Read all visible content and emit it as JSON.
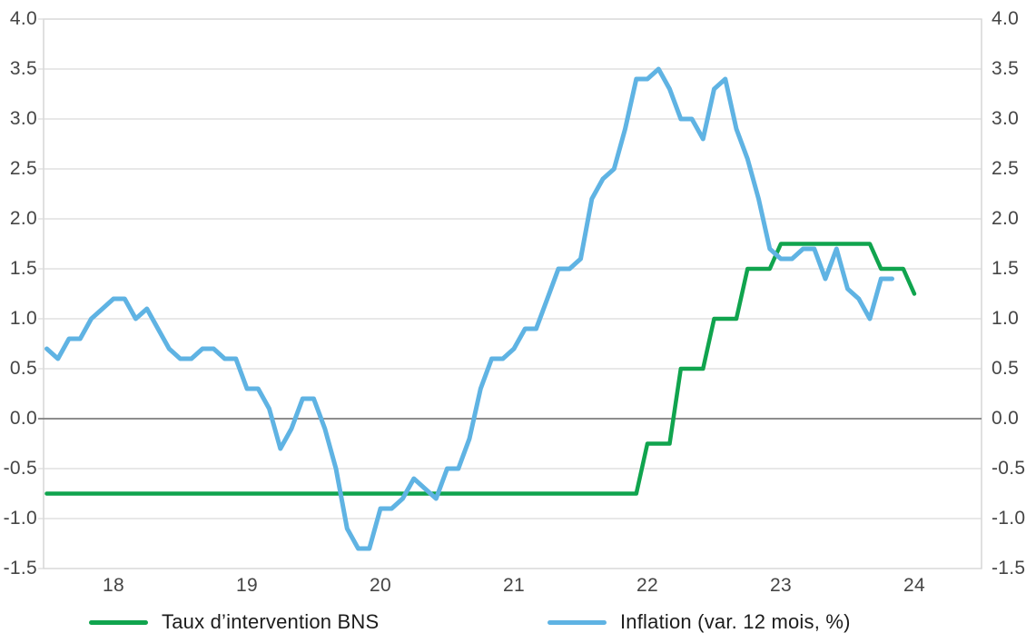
{
  "chart_data": {
    "type": "line",
    "title": "",
    "x_unit": "month",
    "x_start": "2018-01",
    "x_tick_labels": [
      "18",
      "19",
      "20",
      "21",
      "22",
      "23",
      "24"
    ],
    "y_tick_labels": [
      "4.0",
      "3.5",
      "3.0",
      "2.5",
      "2.0",
      "1.5",
      "1.0",
      "0.5",
      "0.0",
      "-0.5",
      "-1.0",
      "-1.5"
    ],
    "ylim": [
      -1.5,
      4.0
    ],
    "y_step": 0.5,
    "grid": "horizontal",
    "zero_line": true,
    "legend_position": "bottom",
    "colors": {
      "grid": "#d9d9d9",
      "zero_line": "#7d7d7d",
      "plot_border": "#d0d0d0",
      "axis_text": "#454545",
      "legend_text": "#1c1c1c"
    },
    "series": [
      {
        "name": "Taux d’intervention BNS",
        "color": "#10a44e",
        "values": [
          -0.75,
          -0.75,
          -0.75,
          -0.75,
          -0.75,
          -0.75,
          -0.75,
          -0.75,
          -0.75,
          -0.75,
          -0.75,
          -0.75,
          -0.75,
          -0.75,
          -0.75,
          -0.75,
          -0.75,
          -0.75,
          -0.75,
          -0.75,
          -0.75,
          -0.75,
          -0.75,
          -0.75,
          -0.75,
          -0.75,
          -0.75,
          -0.75,
          -0.75,
          -0.75,
          -0.75,
          -0.75,
          -0.75,
          -0.75,
          -0.75,
          -0.75,
          -0.75,
          -0.75,
          -0.75,
          -0.75,
          -0.75,
          -0.75,
          -0.75,
          -0.75,
          -0.75,
          -0.75,
          -0.75,
          -0.75,
          -0.75,
          -0.75,
          -0.75,
          -0.75,
          -0.75,
          -0.75,
          -0.25,
          -0.25,
          -0.25,
          0.5,
          0.5,
          0.5,
          1.0,
          1.0,
          1.0,
          1.5,
          1.5,
          1.5,
          1.75,
          1.75,
          1.75,
          1.75,
          1.75,
          1.75,
          1.75,
          1.75,
          1.75,
          1.5,
          1.5,
          1.5,
          1.25
        ]
      },
      {
        "name": "Inflation (var. 12 mois, %)",
        "color": "#5fb3e3",
        "values": [
          0.7,
          0.6,
          0.8,
          0.8,
          1.0,
          1.1,
          1.2,
          1.2,
          1.0,
          1.1,
          0.9,
          0.7,
          0.6,
          0.6,
          0.7,
          0.7,
          0.6,
          0.6,
          0.3,
          0.3,
          0.1,
          -0.3,
          -0.1,
          0.2,
          0.2,
          -0.1,
          -0.5,
          -1.1,
          -1.3,
          -1.3,
          -0.9,
          -0.9,
          -0.8,
          -0.6,
          -0.7,
          -0.8,
          -0.5,
          -0.5,
          -0.2,
          0.3,
          0.6,
          0.6,
          0.7,
          0.9,
          0.9,
          1.2,
          1.5,
          1.5,
          1.6,
          2.2,
          2.4,
          2.5,
          2.9,
          3.4,
          3.4,
          3.5,
          3.3,
          3.0,
          3.0,
          2.8,
          3.3,
          3.4,
          2.9,
          2.6,
          2.2,
          1.7,
          1.6,
          1.6,
          1.7,
          1.7,
          1.4,
          1.7,
          1.3,
          1.2,
          1.0,
          1.4,
          1.4
        ]
      }
    ]
  }
}
